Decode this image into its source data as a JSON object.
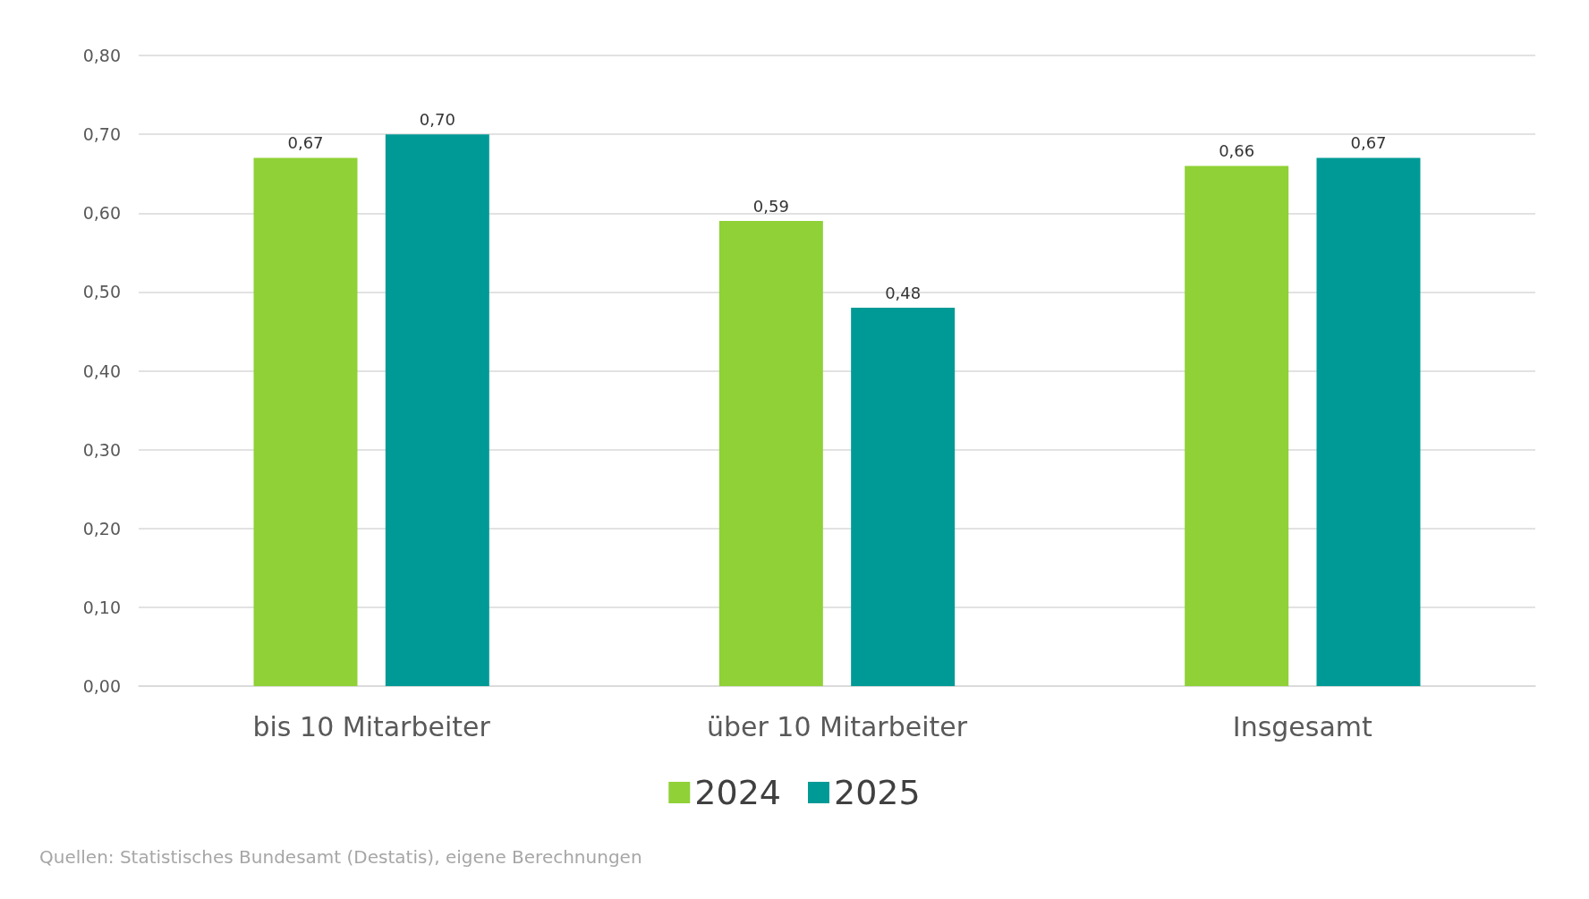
{
  "chart_data": {
    "type": "bar",
    "categories": [
      "bis 10 Mitarbeiter",
      "über 10 Mitarbeiter",
      "Insgesamt"
    ],
    "series": [
      {
        "name": "2024",
        "color": "#8fd136",
        "values": [
          0.67,
          0.59,
          0.66
        ],
        "value_labels": [
          "0,67",
          "0,59",
          "0,66"
        ]
      },
      {
        "name": "2025",
        "color": "#009a96",
        "values": [
          0.7,
          0.48,
          0.67
        ],
        "value_labels": [
          "0,70",
          "0,48",
          "0,67"
        ]
      }
    ],
    "ylim": [
      0,
      0.8
    ],
    "yticks": [
      {
        "value": 0,
        "label": "0,00"
      },
      {
        "value": 0.1,
        "label": "0,10"
      },
      {
        "value": 0.2,
        "label": "0,20"
      },
      {
        "value": 0.3,
        "label": "0,30"
      },
      {
        "value": 0.4,
        "label": "0,40"
      },
      {
        "value": 0.5,
        "label": "0,50"
      },
      {
        "value": 0.6,
        "label": "0,60"
      },
      {
        "value": 0.7,
        "label": "0,70"
      },
      {
        "value": 0.8,
        "label": "0,80"
      }
    ],
    "grid": "y",
    "legend": "bottom",
    "annotations": [
      "Quellen: Statistisches Bundesamt (Destatis), eigene Berechnungen"
    ]
  }
}
